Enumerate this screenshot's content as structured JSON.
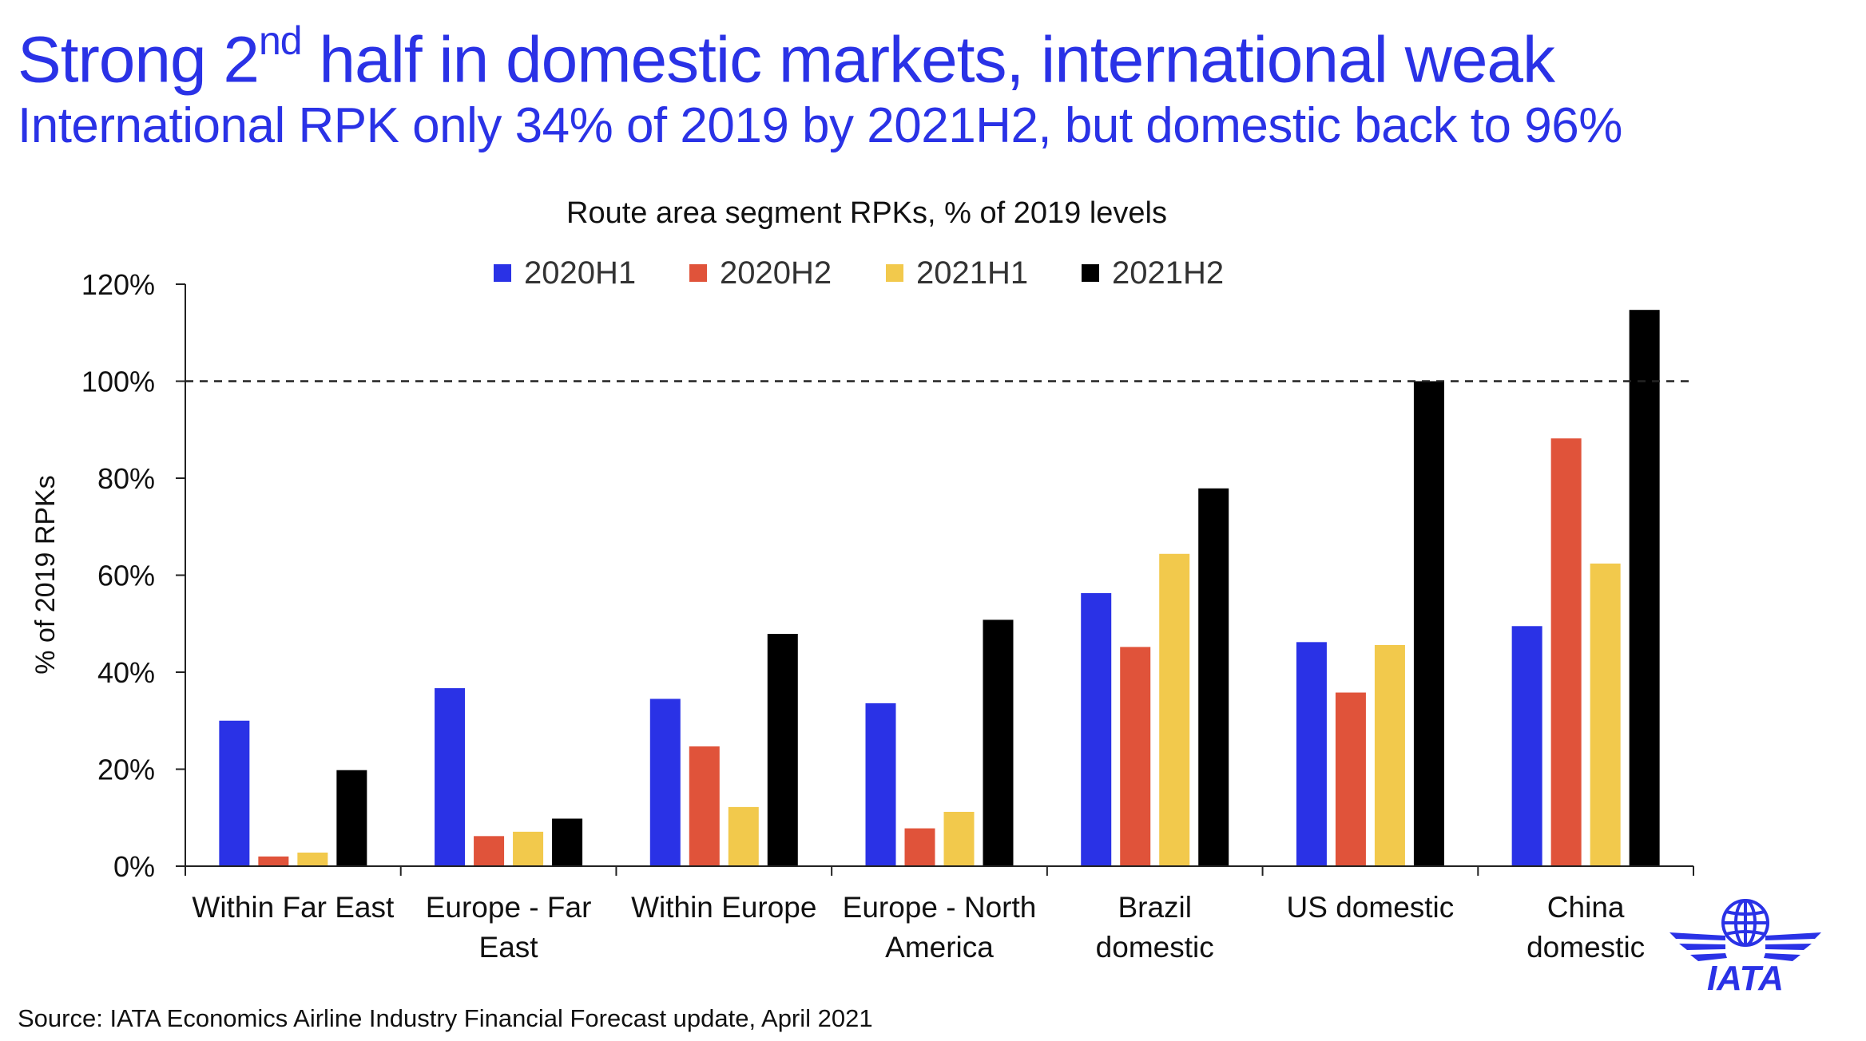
{
  "headline": {
    "title_pre": "Strong 2",
    "title_sup": "nd",
    "title_post": " half in domestic markets, international weak",
    "subtitle": "International RPK only 34% of 2019 by 2021H2, but domestic back to 96%"
  },
  "source": "Source: IATA Economics Airline Industry Financial Forecast update, April 2021",
  "logo": {
    "icon": "iata-globe-wings-logo",
    "text": "IATA",
    "color": "#2a32e6"
  },
  "chart_data": {
    "type": "bar",
    "title": "Route area segment RPKs, % of 2019 levels",
    "xlabel": "",
    "ylabel": "% of 2019 RPKs",
    "ylim": [
      0,
      120
    ],
    "yticks": [
      0,
      20,
      40,
      60,
      80,
      100,
      120
    ],
    "ytick_labels": [
      "0%",
      "20%",
      "40%",
      "60%",
      "80%",
      "100%",
      "120%"
    ],
    "reference_line": {
      "value": 100,
      "style": "dashed"
    },
    "legend_position": "top",
    "grid": false,
    "categories": [
      [
        "Within Far East"
      ],
      [
        "Europe - Far",
        "East"
      ],
      [
        "Within Europe"
      ],
      [
        "Europe - North",
        "America"
      ],
      [
        "Brazil",
        "domestic"
      ],
      [
        "US domestic"
      ],
      [
        "China",
        "domestic"
      ]
    ],
    "series": [
      {
        "name": "2020H1",
        "color": "#2a32e6",
        "values": [
          30,
          36.7,
          34.5,
          33.6,
          56.3,
          46.2,
          49.5
        ]
      },
      {
        "name": "2020H2",
        "color": "#e0533a",
        "values": [
          2,
          6.2,
          24.7,
          7.8,
          45.2,
          35.8,
          88.2
        ]
      },
      {
        "name": "2021H1",
        "color": "#f2c94c",
        "values": [
          2.8,
          7.1,
          12.2,
          11.2,
          64.4,
          45.6,
          62.4
        ]
      },
      {
        "name": "2021H2",
        "color": "#000000",
        "values": [
          19.8,
          9.8,
          47.9,
          50.8,
          77.9,
          100,
          114.7
        ]
      }
    ]
  }
}
